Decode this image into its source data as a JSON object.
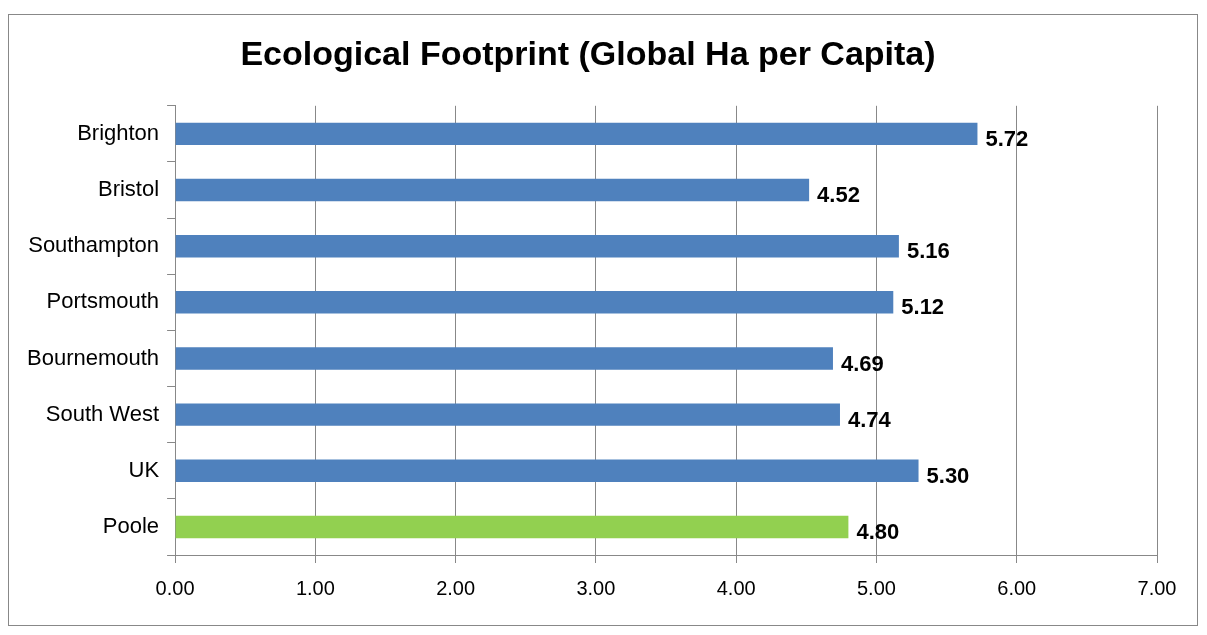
{
  "chart_data": {
    "type": "bar",
    "orientation": "horizontal",
    "title": "Ecological Footprint (Global Ha per Capita)",
    "categories": [
      "Brighton",
      "Bristol",
      "Southampton",
      "Portsmouth",
      "Bournemouth",
      "South West",
      "UK",
      "Poole"
    ],
    "values": [
      5.72,
      4.52,
      5.16,
      5.12,
      4.69,
      4.74,
      5.3,
      4.8
    ],
    "colors": [
      "#4f81bd",
      "#4f81bd",
      "#4f81bd",
      "#4f81bd",
      "#4f81bd",
      "#4f81bd",
      "#4f81bd",
      "#92d050"
    ],
    "value_labels": [
      "5.72",
      "4.52",
      "5.16",
      "5.12",
      "4.69",
      "4.74",
      "5.30",
      "4.80"
    ],
    "xlim": [
      0,
      7
    ],
    "xticks": [
      {
        "value": 0,
        "label": "0.00"
      },
      {
        "value": 1,
        "label": "1.00"
      },
      {
        "value": 2,
        "label": "2.00"
      },
      {
        "value": 3,
        "label": "3.00"
      },
      {
        "value": 4,
        "label": "4.00"
      },
      {
        "value": 5,
        "label": "5.00"
      },
      {
        "value": 6,
        "label": "6.00"
      },
      {
        "value": 7,
        "label": "7.00"
      }
    ],
    "grid": "x",
    "legend": false
  }
}
